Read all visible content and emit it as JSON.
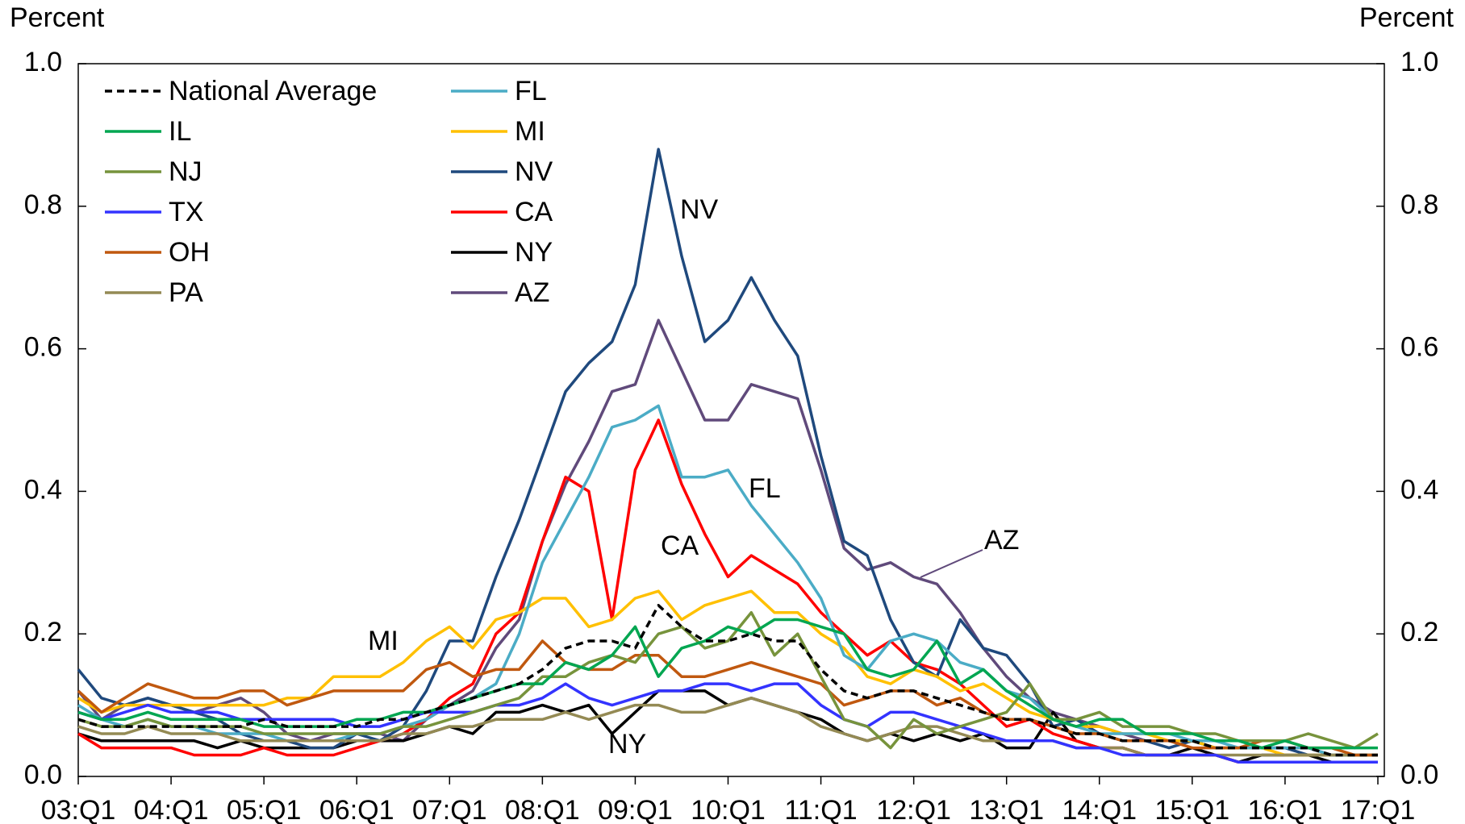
{
  "chart_data": {
    "type": "line",
    "y_label": "Percent",
    "y2_label": "Percent",
    "categories": [
      "03:Q1",
      null,
      null,
      null,
      "04:Q1",
      null,
      null,
      null,
      "05:Q1",
      null,
      null,
      null,
      "06:Q1",
      null,
      null,
      null,
      "07:Q1",
      null,
      null,
      null,
      "08:Q1",
      null,
      null,
      null,
      "09:Q1",
      null,
      null,
      null,
      "10:Q1",
      null,
      null,
      null,
      "11:Q1",
      null,
      null,
      null,
      "12:Q1",
      null,
      null,
      null,
      "13:Q1",
      null,
      null,
      null,
      "14:Q1",
      null,
      null,
      null,
      "15:Q1",
      null,
      null,
      null,
      "16:Q1",
      null,
      null,
      null,
      "17:Q1"
    ],
    "ylim": [
      0,
      1
    ],
    "yticks": [
      {
        "value": 0,
        "label": "0.0"
      },
      0.2,
      0.4,
      0.6,
      0.8,
      {
        "value": 1,
        "label": "1.0"
      }
    ],
    "y2lim": [
      0,
      1
    ],
    "y2ticks": [
      {
        "value": 0,
        "label": "0.0"
      },
      0.2,
      0.4,
      0.6,
      0.8,
      {
        "value": 1,
        "label": "1.0"
      }
    ],
    "legend": "upper left",
    "series": [
      {
        "name": "National Average",
        "color": "#000000",
        "style": "dashed",
        "values": [
          0.08,
          0.07,
          0.07,
          0.07,
          0.07,
          0.07,
          0.07,
          0.07,
          0.08,
          0.07,
          0.07,
          0.07,
          0.07,
          0.08,
          0.08,
          0.09,
          0.1,
          0.11,
          0.12,
          0.13,
          0.15,
          0.18,
          0.19,
          0.19,
          0.18,
          0.24,
          0.21,
          0.19,
          0.19,
          0.2,
          0.19,
          0.19,
          0.15,
          0.12,
          0.11,
          0.12,
          0.12,
          0.11,
          0.1,
          0.09,
          0.08,
          0.08,
          0.07,
          0.06,
          0.06,
          0.05,
          0.05,
          0.05,
          0.05,
          0.04,
          0.04,
          0.04,
          0.04,
          0.04,
          0.03,
          0.03,
          0.03
        ]
      },
      {
        "name": "IL",
        "color": "#00a651",
        "values": [
          0.09,
          0.08,
          0.08,
          0.09,
          0.08,
          0.08,
          0.08,
          0.08,
          0.07,
          0.07,
          0.07,
          0.07,
          0.08,
          0.08,
          0.09,
          0.09,
          0.1,
          0.11,
          0.12,
          0.13,
          0.13,
          0.16,
          0.15,
          0.17,
          0.21,
          0.14,
          0.18,
          0.19,
          0.21,
          0.2,
          0.22,
          0.22,
          0.21,
          0.2,
          0.15,
          0.14,
          0.15,
          0.19,
          0.13,
          0.15,
          0.12,
          0.1,
          0.08,
          0.07,
          0.08,
          0.08,
          0.06,
          0.06,
          0.06,
          0.05,
          0.05,
          0.04,
          0.05,
          0.04,
          0.04,
          0.04,
          0.04
        ]
      },
      {
        "name": "NJ",
        "color": "#77933c",
        "values": [
          0.08,
          0.07,
          0.07,
          0.08,
          0.07,
          0.07,
          0.07,
          0.07,
          0.06,
          0.06,
          0.06,
          0.06,
          0.06,
          0.06,
          0.07,
          0.07,
          0.08,
          0.09,
          0.1,
          0.11,
          0.14,
          0.14,
          0.16,
          0.17,
          0.16,
          0.2,
          0.21,
          0.18,
          0.19,
          0.23,
          0.17,
          0.2,
          0.14,
          0.08,
          0.07,
          0.04,
          0.08,
          0.06,
          0.07,
          0.08,
          0.09,
          0.13,
          0.08,
          0.08,
          0.09,
          0.07,
          0.07,
          0.07,
          0.06,
          0.06,
          0.05,
          0.05,
          0.05,
          0.06,
          0.05,
          0.04,
          0.06
        ]
      },
      {
        "name": "TX",
        "color": "#3333ff",
        "values": [
          0.09,
          0.08,
          0.09,
          0.1,
          0.09,
          0.09,
          0.09,
          0.08,
          0.08,
          0.08,
          0.08,
          0.08,
          0.07,
          0.07,
          0.08,
          0.09,
          0.09,
          0.09,
          0.1,
          0.1,
          0.11,
          0.13,
          0.11,
          0.1,
          0.11,
          0.12,
          0.12,
          0.13,
          0.13,
          0.12,
          0.13,
          0.13,
          0.1,
          0.08,
          0.07,
          0.09,
          0.09,
          0.08,
          0.07,
          0.06,
          0.05,
          0.05,
          0.05,
          0.04,
          0.04,
          0.03,
          0.03,
          0.03,
          0.03,
          0.03,
          0.02,
          0.02,
          0.02,
          0.02,
          0.02,
          0.02,
          0.02
        ]
      },
      {
        "name": "OH",
        "color": "#c0580f",
        "values": [
          0.12,
          0.09,
          0.11,
          0.13,
          0.12,
          0.11,
          0.11,
          0.12,
          0.12,
          0.1,
          0.11,
          0.12,
          0.12,
          0.12,
          0.12,
          0.15,
          0.16,
          0.14,
          0.15,
          0.15,
          0.19,
          0.16,
          0.15,
          0.15,
          0.17,
          0.17,
          0.14,
          0.14,
          0.15,
          0.16,
          0.15,
          0.14,
          0.13,
          0.1,
          0.11,
          0.12,
          0.12,
          0.1,
          0.11,
          0.09,
          0.08,
          0.08,
          0.07,
          0.06,
          0.06,
          0.05,
          0.05,
          0.05,
          0.04,
          0.04,
          0.04,
          0.05,
          0.05,
          0.04,
          0.04,
          0.03,
          0.03
        ]
      },
      {
        "name": "PA",
        "color": "#948a54",
        "values": [
          0.07,
          0.06,
          0.06,
          0.07,
          0.06,
          0.06,
          0.06,
          0.05,
          0.05,
          0.05,
          0.05,
          0.05,
          0.05,
          0.05,
          0.06,
          0.06,
          0.07,
          0.07,
          0.08,
          0.08,
          0.08,
          0.09,
          0.08,
          0.09,
          0.1,
          0.1,
          0.09,
          0.09,
          0.1,
          0.11,
          0.1,
          0.09,
          0.07,
          0.06,
          0.05,
          0.06,
          0.07,
          0.07,
          0.06,
          0.05,
          0.05,
          0.05,
          0.05,
          0.04,
          0.04,
          0.04,
          0.03,
          0.03,
          0.03,
          0.03,
          0.03,
          0.03,
          0.03,
          0.03,
          0.03,
          0.03,
          0.03
        ]
      },
      {
        "name": "FL",
        "color": "#4bacc6",
        "values": [
          0.1,
          0.08,
          0.07,
          0.08,
          0.07,
          0.07,
          0.06,
          0.06,
          0.06,
          0.05,
          0.05,
          0.05,
          0.06,
          0.06,
          0.07,
          0.08,
          0.1,
          0.11,
          0.13,
          0.2,
          0.3,
          0.36,
          0.42,
          0.49,
          0.5,
          0.52,
          0.42,
          0.42,
          0.43,
          0.38,
          0.34,
          0.3,
          0.25,
          0.17,
          0.15,
          0.19,
          0.2,
          0.19,
          0.16,
          0.15,
          0.12,
          0.11,
          0.08,
          0.07,
          0.06,
          0.06,
          0.06,
          0.06,
          0.05,
          0.05,
          0.04,
          0.04,
          0.04,
          0.04,
          0.03,
          0.03,
          0.03
        ]
      },
      {
        "name": "MI",
        "color": "#ffc000",
        "values": [
          0.11,
          0.09,
          0.1,
          0.1,
          0.1,
          0.1,
          0.1,
          0.1,
          0.1,
          0.11,
          0.11,
          0.14,
          0.14,
          0.14,
          0.16,
          0.19,
          0.21,
          0.18,
          0.22,
          0.23,
          0.25,
          0.25,
          0.21,
          0.22,
          0.25,
          0.26,
          0.22,
          0.24,
          0.25,
          0.26,
          0.23,
          0.23,
          0.2,
          0.18,
          0.14,
          0.13,
          0.15,
          0.14,
          0.12,
          0.13,
          0.11,
          0.09,
          0.08,
          0.07,
          0.07,
          0.06,
          0.06,
          0.05,
          0.05,
          0.04,
          0.04,
          0.04,
          0.03,
          0.03,
          0.03,
          0.03,
          0.03
        ]
      },
      {
        "name": "NV",
        "color": "#1f497d",
        "values": [
          0.15,
          0.11,
          0.1,
          0.11,
          0.1,
          0.09,
          0.08,
          0.06,
          0.05,
          0.05,
          0.04,
          0.04,
          0.06,
          0.05,
          0.07,
          0.12,
          0.19,
          0.19,
          0.28,
          0.36,
          0.45,
          0.54,
          0.58,
          0.61,
          0.69,
          0.88,
          0.73,
          0.61,
          0.64,
          0.7,
          0.64,
          0.59,
          0.45,
          0.33,
          0.31,
          0.22,
          0.16,
          0.14,
          0.22,
          0.18,
          0.17,
          0.13,
          0.07,
          0.08,
          0.06,
          0.05,
          0.05,
          0.04,
          0.05,
          0.04,
          0.04,
          0.04,
          0.04,
          0.03,
          0.03,
          0.03,
          0.03
        ]
      },
      {
        "name": "CA",
        "color": "#ff0000",
        "values": [
          0.06,
          0.04,
          0.04,
          0.04,
          0.04,
          0.03,
          0.03,
          0.03,
          0.04,
          0.03,
          0.03,
          0.03,
          0.04,
          0.05,
          0.06,
          0.08,
          0.11,
          0.13,
          0.2,
          0.23,
          0.33,
          0.42,
          0.4,
          0.22,
          0.43,
          0.5,
          0.41,
          0.34,
          0.28,
          0.31,
          0.29,
          0.27,
          0.23,
          0.2,
          0.17,
          0.19,
          0.16,
          0.15,
          0.13,
          0.1,
          0.07,
          0.08,
          0.06,
          0.05,
          0.04,
          0.04,
          0.03,
          0.03,
          0.03,
          0.03,
          0.02,
          0.02,
          0.02,
          0.02,
          0.02,
          0.02,
          0.02
        ]
      },
      {
        "name": "NY",
        "color": "#000000",
        "values": [
          0.06,
          0.05,
          0.05,
          0.05,
          0.05,
          0.05,
          0.04,
          0.05,
          0.04,
          0.04,
          0.04,
          0.04,
          0.05,
          0.05,
          0.05,
          0.06,
          0.07,
          0.06,
          0.09,
          0.09,
          0.1,
          0.09,
          0.1,
          0.06,
          0.09,
          0.12,
          0.12,
          0.12,
          0.1,
          0.11,
          0.1,
          0.09,
          0.08,
          0.06,
          0.05,
          0.06,
          0.05,
          0.06,
          0.05,
          0.06,
          0.04,
          0.04,
          0.09,
          0.05,
          0.04,
          0.04,
          0.03,
          0.03,
          0.04,
          0.03,
          0.02,
          0.03,
          0.03,
          0.03,
          0.02,
          0.02,
          0.02
        ]
      },
      {
        "name": "AZ",
        "color": "#604a7b",
        "values": [
          0.12,
          0.08,
          0.1,
          0.11,
          0.1,
          0.09,
          0.1,
          0.11,
          0.09,
          0.06,
          0.05,
          0.06,
          0.06,
          0.06,
          0.05,
          0.08,
          0.1,
          0.12,
          0.18,
          0.22,
          0.33,
          0.41,
          0.47,
          0.54,
          0.55,
          0.64,
          0.57,
          0.5,
          0.5,
          0.55,
          0.54,
          0.53,
          0.43,
          0.32,
          0.29,
          0.3,
          0.28,
          0.27,
          0.23,
          0.18,
          0.14,
          0.11,
          0.09,
          0.08,
          0.07,
          0.06,
          0.05,
          0.05,
          0.05,
          0.04,
          0.04,
          0.04,
          0.04,
          0.04,
          0.03,
          0.03,
          0.03
        ]
      }
    ],
    "annotations": [
      "NV",
      "FL",
      "CA",
      "MI",
      "NY",
      "AZ"
    ]
  }
}
